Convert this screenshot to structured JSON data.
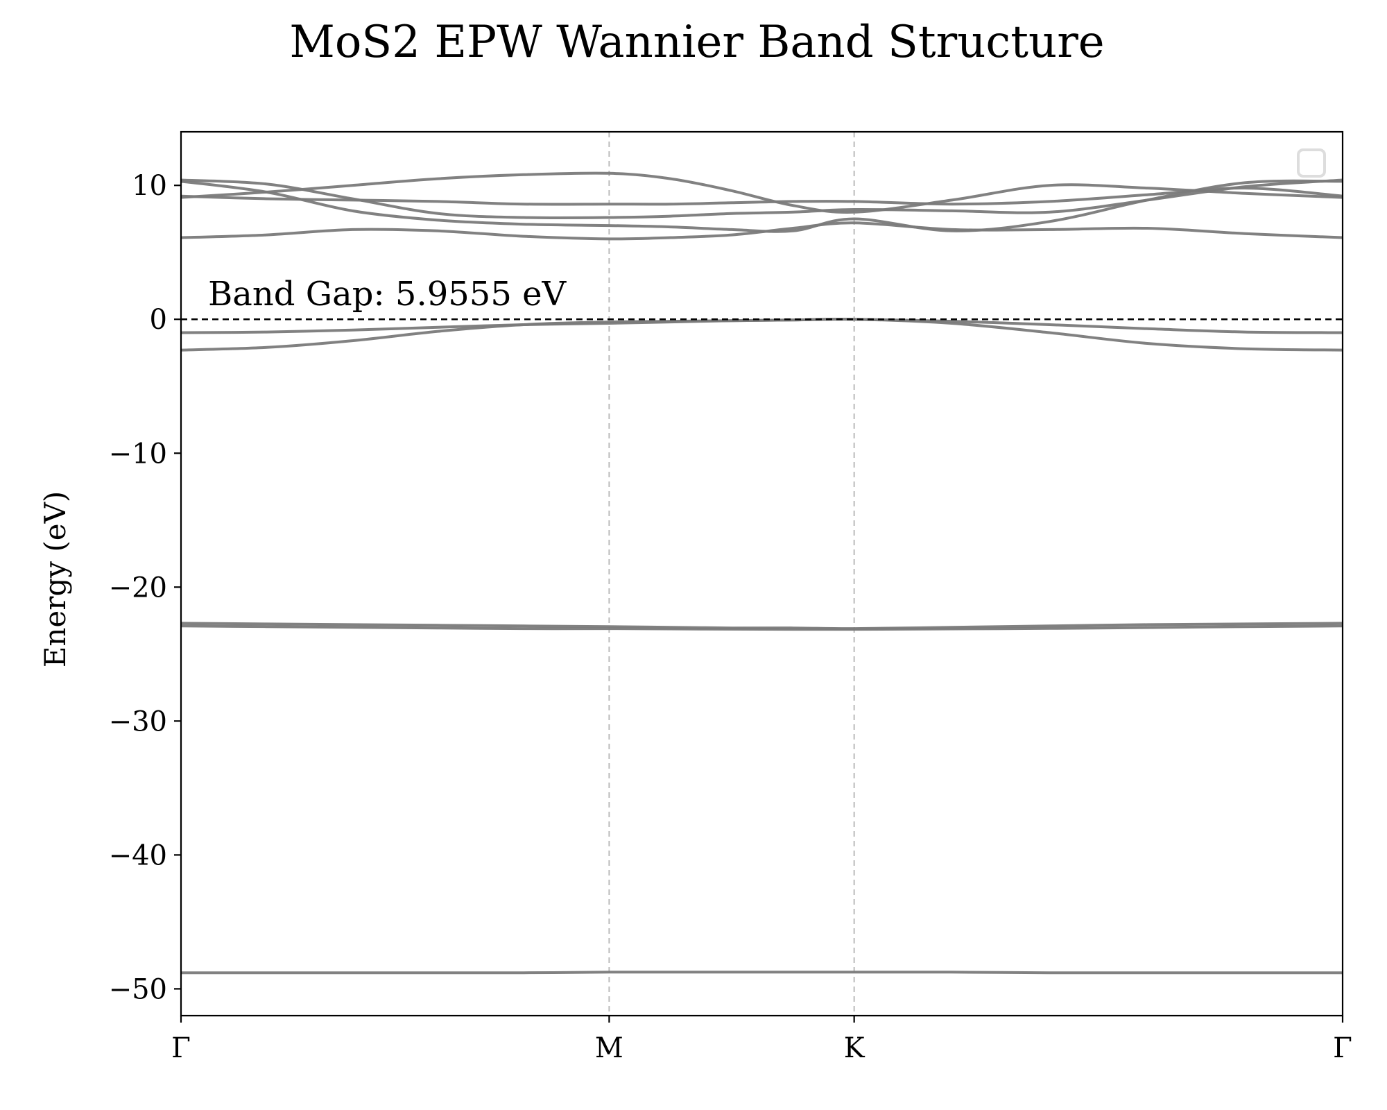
{
  "chart_data": {
    "type": "line",
    "title": "MoS2 EPW Wannier Band Structure",
    "xlabel": "",
    "ylabel": "Energy (eV)",
    "ylim": [
      -52,
      14
    ],
    "xlim": [
      0,
      1
    ],
    "y_ticks": [
      10,
      0,
      -10,
      -20,
      -30,
      -40,
      -50
    ],
    "y_tick_labels": [
      "10",
      "0",
      "−10",
      "−20",
      "−30",
      "−40",
      "−50"
    ],
    "x_ticks": [
      0,
      0.3686,
      0.5795,
      1.0
    ],
    "x_tick_labels": [
      "Γ",
      "M",
      "K",
      "Γ"
    ],
    "fermi_level": 0,
    "annotation": "Band Gap: 5.9555 eV",
    "legend": "top-right",
    "grid": "vertical dashed at high-symmetry points",
    "line_color": "#7a7a7a",
    "x": [
      0,
      0.0737,
      0.1474,
      0.2212,
      0.2949,
      0.3686,
      0.4213,
      0.4741,
      0.5268,
      0.5795,
      0.6636,
      0.7477,
      0.8318,
      0.9159,
      1.0
    ],
    "series": [
      {
        "values": [
          -48.8,
          -48.8,
          -48.8,
          -48.8,
          -48.8,
          -48.75,
          -48.75,
          -48.75,
          -48.75,
          -48.75,
          -48.75,
          -48.8,
          -48.8,
          -48.8,
          -48.8
        ]
      },
      {
        "values": [
          -22.9,
          -22.95,
          -23.0,
          -23.05,
          -23.1,
          -23.1,
          -23.12,
          -23.14,
          -23.15,
          -23.15,
          -23.12,
          -23.08,
          -23.02,
          -22.95,
          -22.9
        ]
      },
      {
        "values": [
          -22.7,
          -22.75,
          -22.8,
          -22.85,
          -22.9,
          -22.95,
          -23.0,
          -23.05,
          -23.05,
          -23.1,
          -23.0,
          -22.9,
          -22.8,
          -22.75,
          -22.7
        ]
      },
      {
        "values": [
          -2.3,
          -2.1,
          -1.6,
          -0.9,
          -0.4,
          -0.2,
          -0.15,
          -0.1,
          -0.05,
          0.0,
          -0.3,
          -1.0,
          -1.8,
          -2.2,
          -2.3
        ]
      },
      {
        "values": [
          -1.0,
          -0.95,
          -0.8,
          -0.6,
          -0.4,
          -0.3,
          -0.2,
          -0.1,
          -0.05,
          0.0,
          -0.15,
          -0.4,
          -0.7,
          -0.95,
          -1.0
        ]
      },
      {
        "values": [
          6.1,
          6.3,
          6.7,
          6.6,
          6.2,
          6.0,
          6.1,
          6.3,
          6.8,
          7.2,
          6.7,
          6.7,
          6.8,
          6.4,
          6.1
        ]
      },
      {
        "values": [
          9.1,
          9.5,
          10.0,
          10.5,
          10.8,
          10.9,
          10.5,
          9.6,
          8.5,
          8.0,
          8.9,
          10.0,
          9.8,
          9.4,
          9.1
        ]
      },
      {
        "values": [
          9.2,
          9.0,
          8.9,
          8.8,
          8.6,
          8.6,
          8.6,
          8.7,
          8.8,
          8.8,
          8.6,
          8.8,
          9.3,
          9.8,
          9.2
        ]
      },
      {
        "values": [
          10.4,
          10.1,
          9.0,
          7.9,
          7.6,
          7.6,
          7.7,
          7.9,
          8.0,
          8.2,
          8.1,
          8.0,
          8.9,
          9.9,
          10.4
        ]
      },
      {
        "values": [
          10.3,
          9.5,
          8.1,
          7.4,
          7.1,
          7.0,
          6.9,
          6.7,
          6.6,
          7.5,
          6.6,
          7.3,
          8.9,
          10.2,
          10.3
        ]
      }
    ]
  }
}
